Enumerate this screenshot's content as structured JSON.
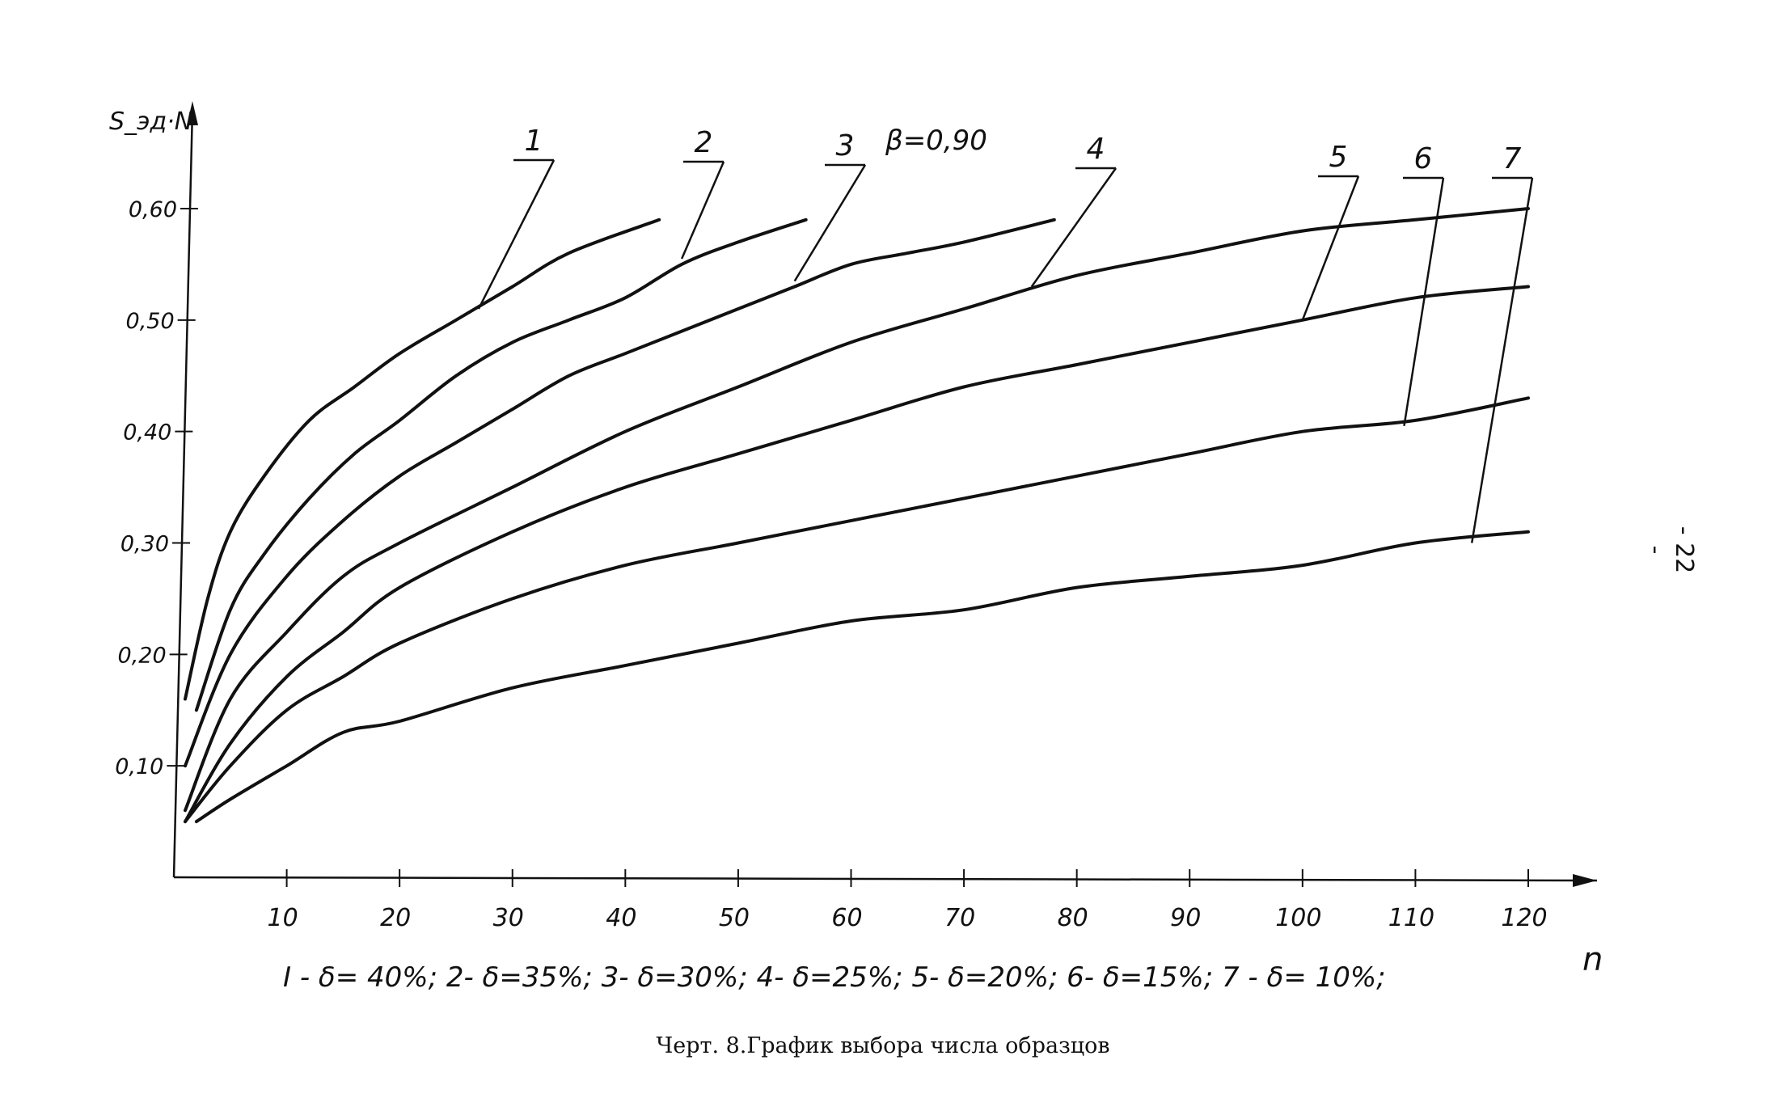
{
  "chart_data": {
    "type": "line",
    "title": "",
    "ylabel": "S_эд·N",
    "xlabel": "n",
    "beta_label": "β=0,90",
    "xlim": [
      0,
      120
    ],
    "ylim": [
      0,
      0.6
    ],
    "x_ticks": [
      10,
      20,
      30,
      40,
      50,
      60,
      70,
      80,
      90,
      100,
      110,
      120
    ],
    "x_tick_labels": [
      "10",
      "20",
      "30",
      "40",
      "50",
      "60",
      "70",
      "80",
      "90",
      "100",
      "110",
      "120"
    ],
    "y_ticks": [
      0.1,
      0.2,
      0.3,
      0.4,
      0.5,
      0.6
    ],
    "y_tick_labels": [
      "0,10",
      "0,20",
      "0,30",
      "0,40",
      "0,50",
      "0,60"
    ],
    "grid": false,
    "series": [
      {
        "name": "1",
        "x": [
          1,
          3,
          5,
          8,
          12,
          16,
          20,
          25,
          30,
          35,
          43
        ],
        "y": [
          0.16,
          0.25,
          0.31,
          0.36,
          0.41,
          0.44,
          0.47,
          0.5,
          0.53,
          0.56,
          0.59
        ]
      },
      {
        "name": "2",
        "x": [
          2,
          5,
          8,
          12,
          16,
          20,
          25,
          30,
          35,
          40,
          45,
          50,
          56
        ],
        "y": [
          0.15,
          0.24,
          0.29,
          0.34,
          0.38,
          0.41,
          0.45,
          0.48,
          0.5,
          0.52,
          0.55,
          0.57,
          0.59
        ]
      },
      {
        "name": "3",
        "x": [
          1,
          5,
          10,
          15,
          20,
          25,
          30,
          35,
          40,
          45,
          50,
          55,
          60,
          65,
          70,
          78
        ],
        "y": [
          0.1,
          0.2,
          0.27,
          0.32,
          0.36,
          0.39,
          0.42,
          0.45,
          0.47,
          0.49,
          0.51,
          0.53,
          0.55,
          0.56,
          0.57,
          0.59
        ]
      },
      {
        "name": "4",
        "x": [
          1,
          5,
          10,
          15,
          20,
          30,
          40,
          50,
          60,
          70,
          80,
          90,
          100,
          110,
          120
        ],
        "y": [
          0.06,
          0.16,
          0.22,
          0.27,
          0.3,
          0.35,
          0.4,
          0.44,
          0.48,
          0.51,
          0.54,
          0.56,
          0.58,
          0.59,
          0.6
        ]
      },
      {
        "name": "5",
        "x": [
          1,
          5,
          10,
          15,
          20,
          30,
          40,
          50,
          60,
          70,
          80,
          90,
          100,
          110,
          120
        ],
        "y": [
          0.05,
          0.12,
          0.18,
          0.22,
          0.26,
          0.31,
          0.35,
          0.38,
          0.41,
          0.44,
          0.46,
          0.48,
          0.5,
          0.52,
          0.53
        ]
      },
      {
        "name": "6",
        "x": [
          1,
          5,
          10,
          15,
          20,
          30,
          40,
          50,
          60,
          70,
          80,
          90,
          100,
          110,
          120
        ],
        "y": [
          0.05,
          0.1,
          0.15,
          0.18,
          0.21,
          0.25,
          0.28,
          0.3,
          0.32,
          0.34,
          0.36,
          0.38,
          0.4,
          0.41,
          0.43
        ]
      },
      {
        "name": "7",
        "x": [
          2,
          5,
          10,
          15,
          20,
          30,
          40,
          50,
          60,
          70,
          80,
          90,
          100,
          110,
          120
        ],
        "y": [
          0.05,
          0.07,
          0.1,
          0.13,
          0.14,
          0.17,
          0.19,
          0.21,
          0.23,
          0.24,
          0.26,
          0.27,
          0.28,
          0.3,
          0.31
        ]
      }
    ],
    "callouts": [
      {
        "label": "1",
        "at_x": 27,
        "at_y": 0.51
      },
      {
        "label": "2",
        "at_x": 45,
        "at_y": 0.555
      },
      {
        "label": "3",
        "at_x": 55,
        "at_y": 0.535
      },
      {
        "label": "4",
        "at_x": 76,
        "at_y": 0.53
      },
      {
        "label": "5",
        "at_x": 100,
        "at_y": 0.5
      },
      {
        "label": "6",
        "at_x": 109,
        "at_y": 0.405
      },
      {
        "label": "7",
        "at_x": 115,
        "at_y": 0.3
      }
    ],
    "legend": "I - δ= 40%;  2- δ=35%;  3- δ=30%;  4- δ=25%;  5- δ=20%;  6- δ=15%;  7 - δ= 10%;"
  },
  "caption": "Черт. 8.График выбора числа образцов",
  "page_number": "- 22 -"
}
